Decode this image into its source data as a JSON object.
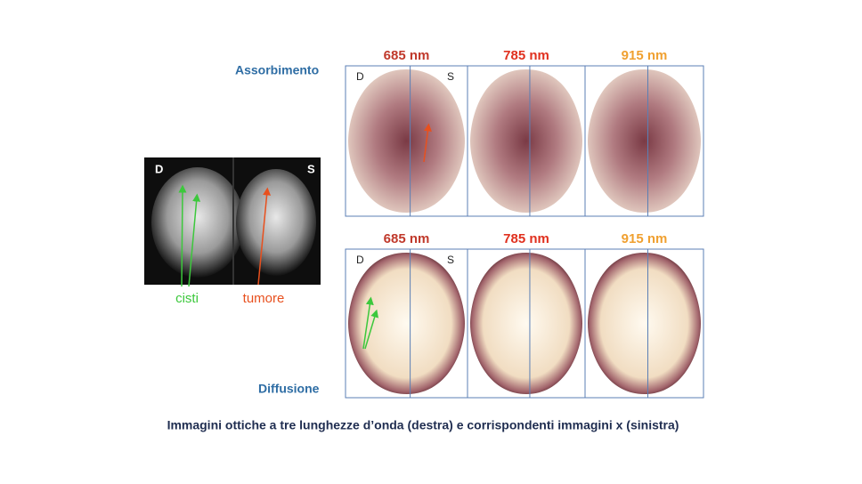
{
  "mammogram": {
    "left_label": "D",
    "right_label": "S",
    "annotations": [
      "cisti",
      "tumore"
    ]
  },
  "absorption": {
    "title": "Assorbimento",
    "wavelengths": [
      "685 nm",
      "785 nm",
      "915 nm"
    ],
    "side_labels": [
      "D",
      "S"
    ]
  },
  "diffusion": {
    "title": "Diffusione",
    "wavelengths": [
      "685 nm",
      "785 nm",
      "915 nm"
    ],
    "side_labels": [
      "D",
      "S"
    ]
  },
  "caption": "Immagini ottiche a tre lunghezze d’onda (destra) e corrispondenti immagini x (sinistra)"
}
